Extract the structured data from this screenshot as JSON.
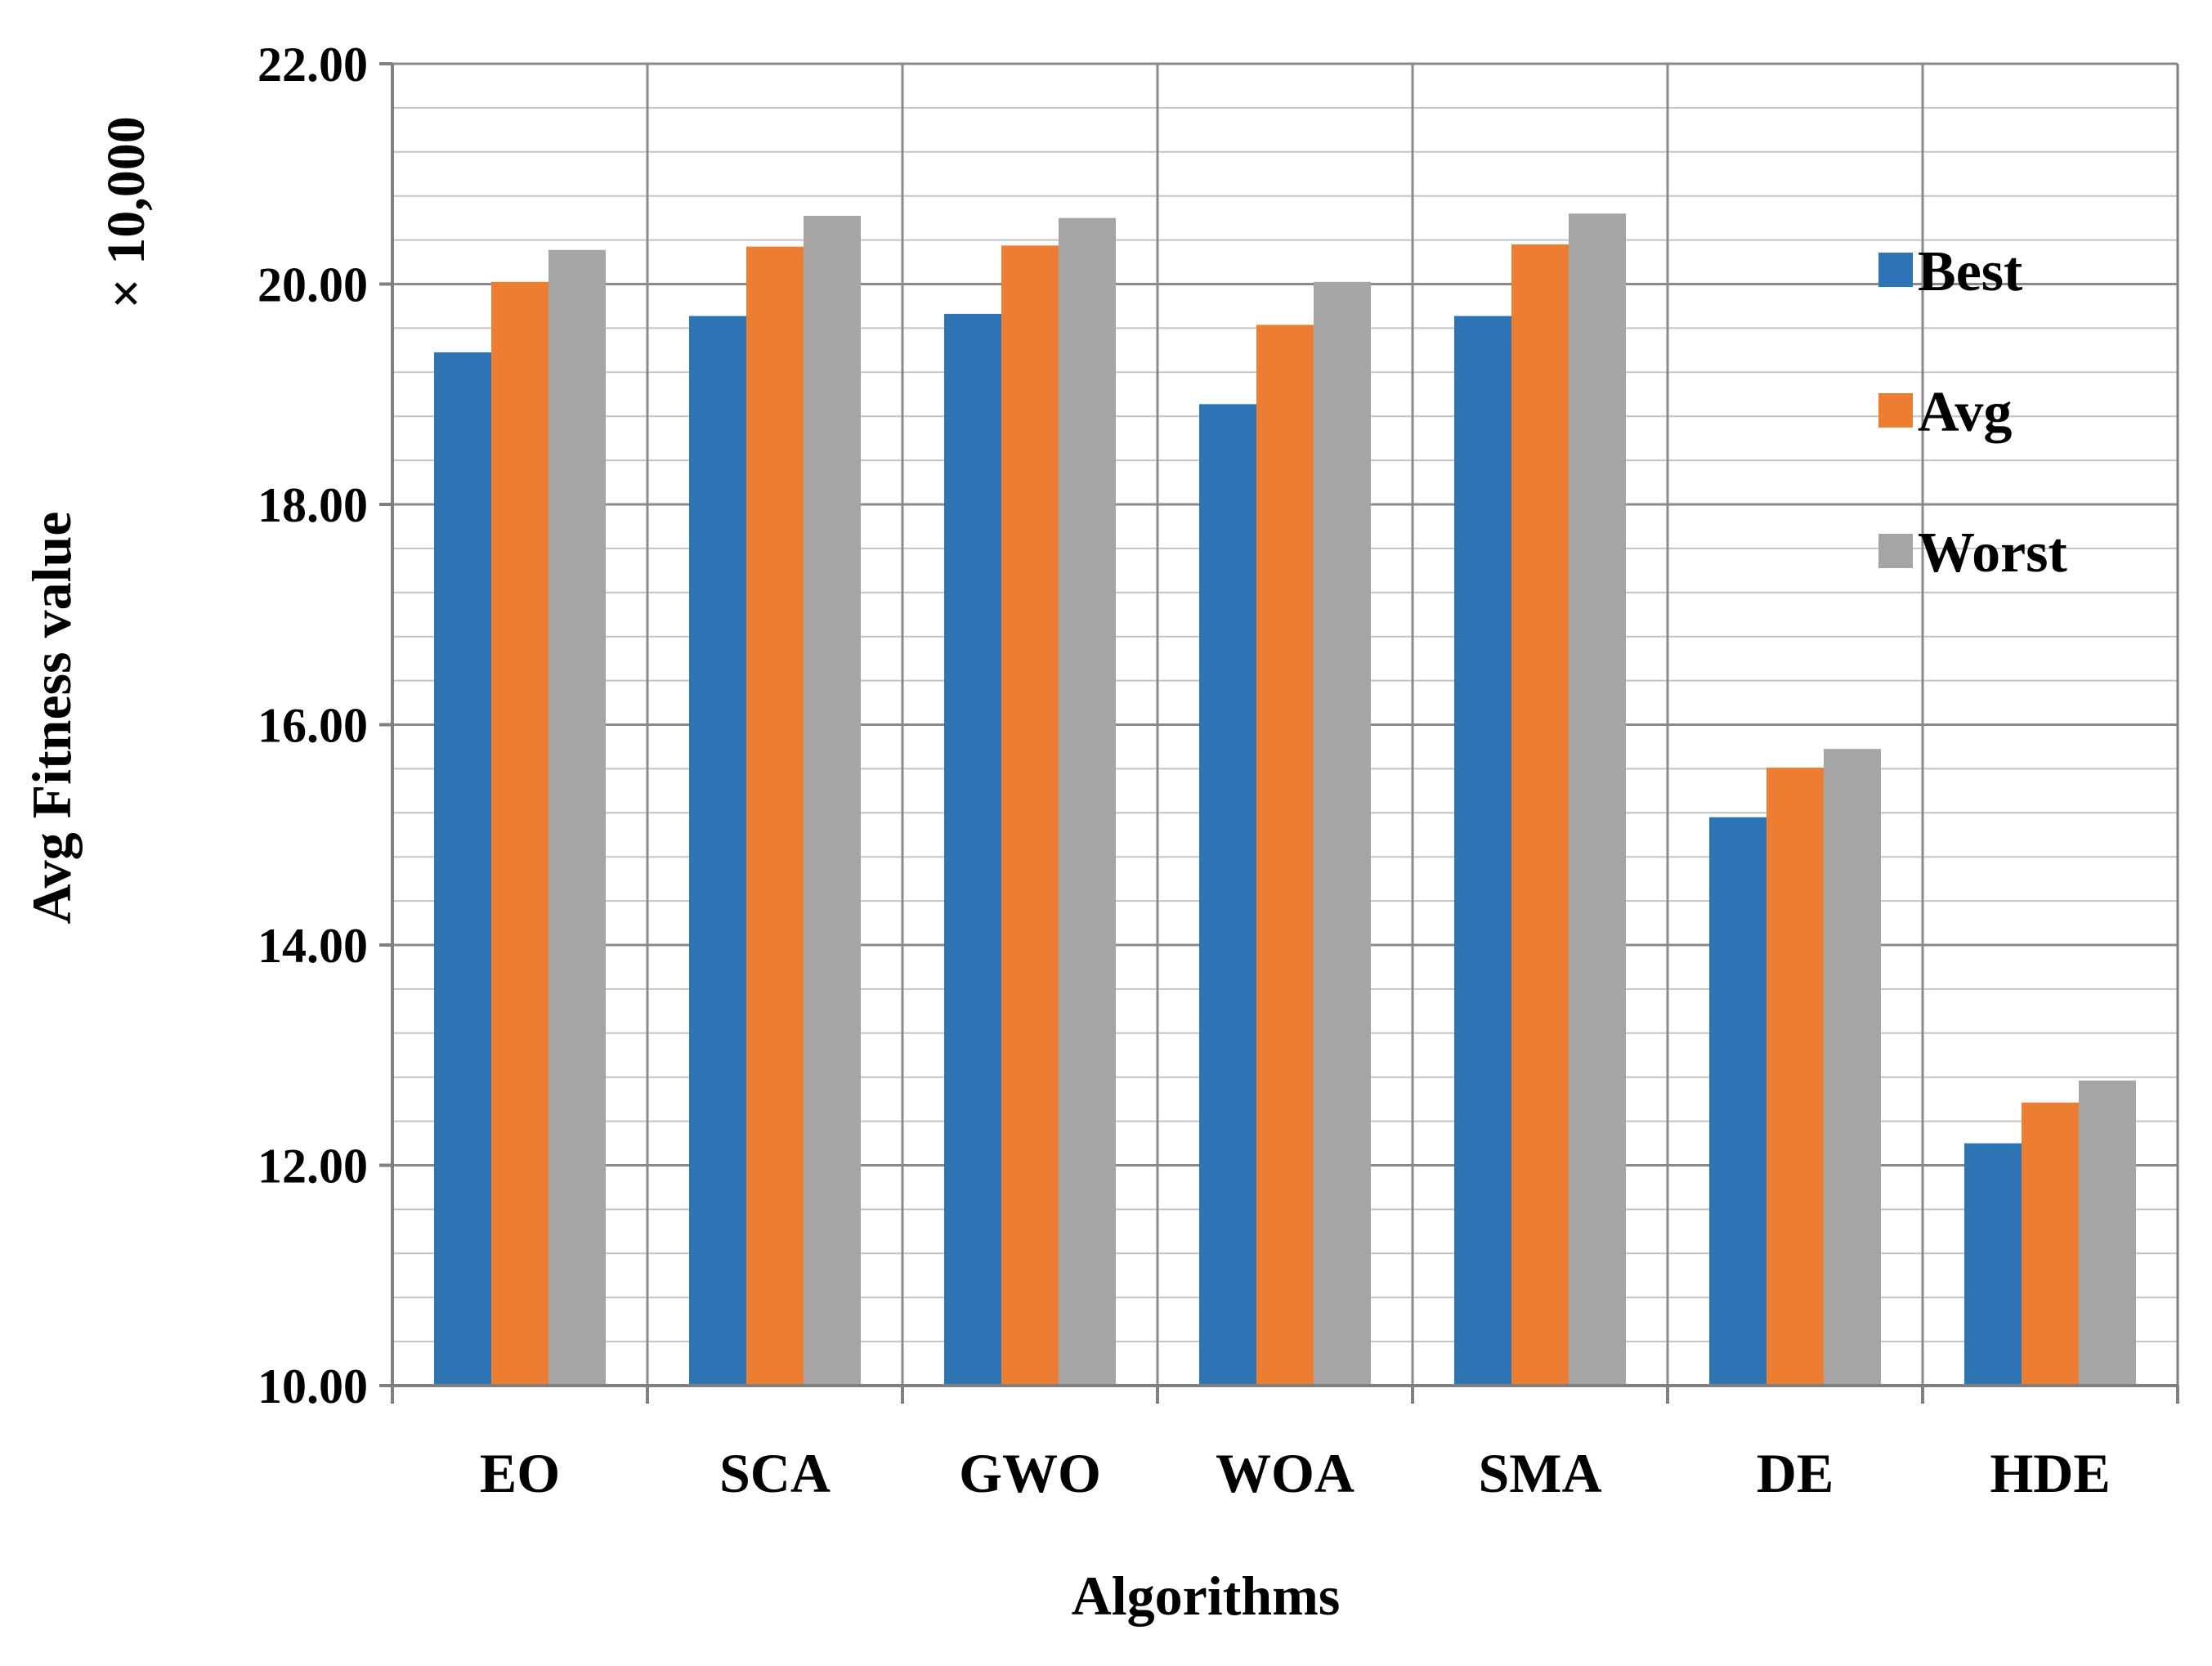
{
  "chart_data": {
    "type": "bar",
    "title": "",
    "xlabel": "Algorithms",
    "ylabel": "Avg Fitness value",
    "y_multiplier_label": "× 10,000",
    "ylim": [
      10,
      22
    ],
    "y_ticks": [
      10,
      12,
      14,
      16,
      18,
      20,
      22
    ],
    "y_tick_labels": [
      "10.00",
      "12.00",
      "14.00",
      "16.00",
      "18.00",
      "20.00",
      "22.00"
    ],
    "grid": true,
    "legend_position": "right",
    "categories": [
      "EO",
      "SCA",
      "GWO",
      "WOA",
      "SMA",
      "DE",
      "HDE"
    ],
    "series": [
      {
        "name": "Best",
        "color": "#2E75B6",
        "values": [
          19.38,
          19.71,
          19.73,
          18.91,
          19.71,
          15.16,
          12.2
        ]
      },
      {
        "name": "Avg",
        "color": "#ED7D31",
        "values": [
          20.02,
          20.34,
          20.35,
          19.63,
          20.36,
          15.61,
          12.57
        ]
      },
      {
        "name": "Worst",
        "color": "#A5A5A5",
        "values": [
          20.31,
          20.62,
          20.6,
          20.02,
          20.64,
          15.78,
          12.77
        ]
      }
    ]
  }
}
